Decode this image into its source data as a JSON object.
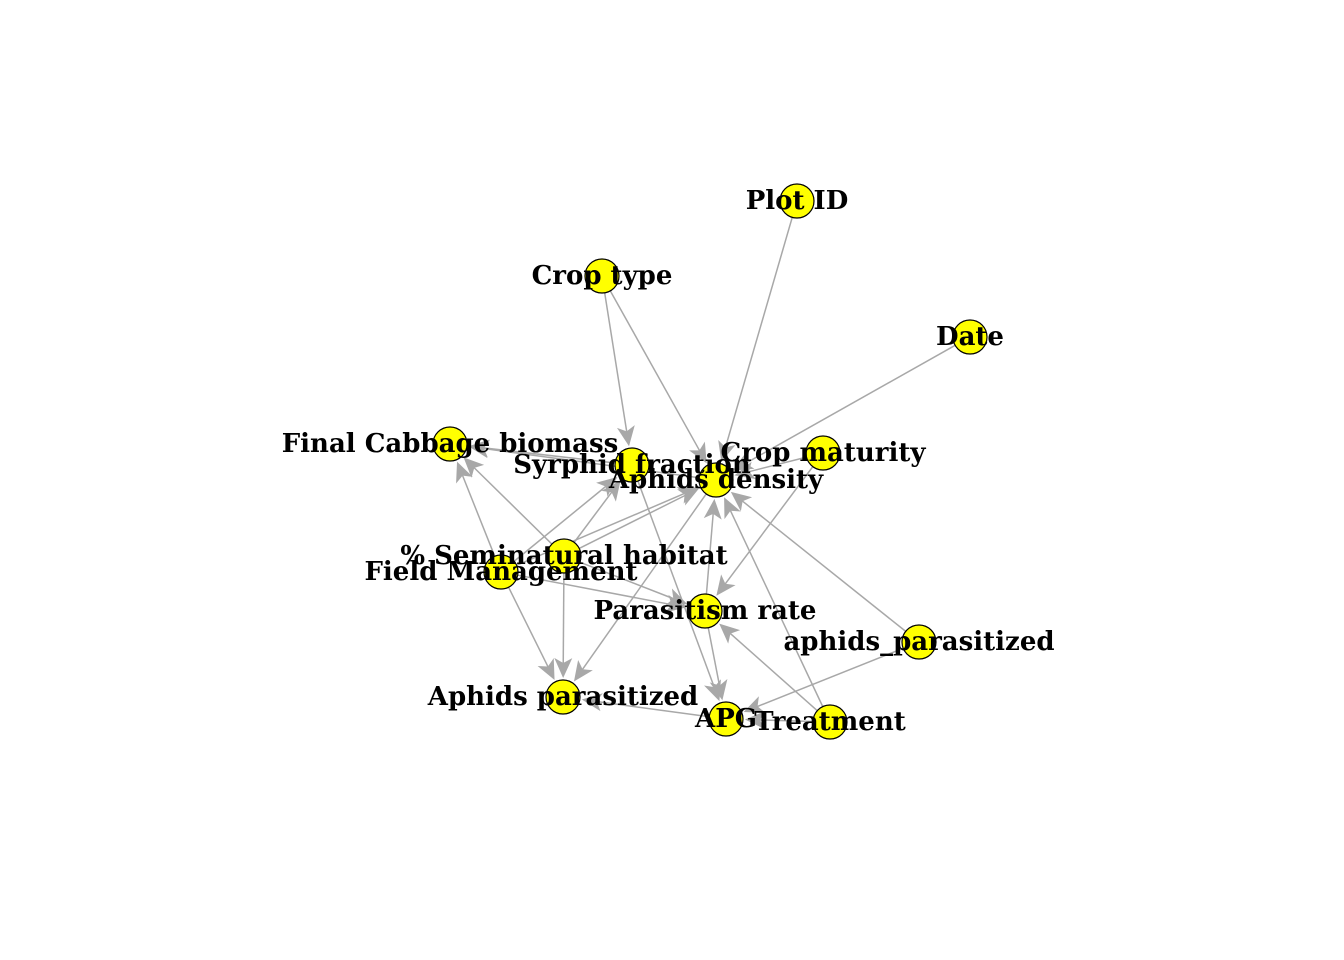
{
  "graph": {
    "node_fill": "#ffff00",
    "node_stroke": "#000000",
    "edge_color": "#a8a8a8",
    "nodes": [
      {
        "id": "plot_id",
        "label": "Plot ID"
      },
      {
        "id": "crop_type",
        "label": "Crop type"
      },
      {
        "id": "date",
        "label": "Date"
      },
      {
        "id": "final_cabbage",
        "label": "Final Cabbage biomass"
      },
      {
        "id": "syrphid",
        "label": "Syrphid fraction"
      },
      {
        "id": "crop_maturity",
        "label": "Crop maturity"
      },
      {
        "id": "aphids_density",
        "label": "Aphids density"
      },
      {
        "id": "seminatural",
        "label": "% Seminatural habitat"
      },
      {
        "id": "field_mgmt",
        "label": "Field Management"
      },
      {
        "id": "parasitism",
        "label": "Parasitism rate"
      },
      {
        "id": "aphids_parasitized_lc",
        "label": "aphids_parasitized"
      },
      {
        "id": "aphids_parasitized",
        "label": "Aphids parasitized"
      },
      {
        "id": "apg",
        "label": "APG"
      },
      {
        "id": "treatment",
        "label": "Treatment"
      }
    ],
    "edges": [
      {
        "from": "plot_id",
        "to": "aphids_density"
      },
      {
        "from": "crop_type",
        "to": "syrphid"
      },
      {
        "from": "crop_type",
        "to": "aphids_density"
      },
      {
        "from": "date",
        "to": "aphids_density"
      },
      {
        "from": "crop_maturity",
        "to": "aphids_density"
      },
      {
        "from": "crop_maturity",
        "to": "parasitism"
      },
      {
        "from": "syrphid",
        "to": "final_cabbage"
      },
      {
        "from": "syrphid",
        "to": "apg"
      },
      {
        "from": "aphids_density",
        "to": "final_cabbage"
      },
      {
        "from": "aphids_density",
        "to": "aphids_parasitized"
      },
      {
        "from": "seminatural",
        "to": "final_cabbage"
      },
      {
        "from": "seminatural",
        "to": "syrphid"
      },
      {
        "from": "seminatural",
        "to": "aphids_density"
      },
      {
        "from": "seminatural",
        "to": "aphids_parasitized"
      },
      {
        "from": "seminatural",
        "to": "parasitism"
      },
      {
        "from": "field_mgmt",
        "to": "final_cabbage"
      },
      {
        "from": "field_mgmt",
        "to": "syrphid"
      },
      {
        "from": "field_mgmt",
        "to": "aphids_density"
      },
      {
        "from": "field_mgmt",
        "to": "aphids_parasitized"
      },
      {
        "from": "field_mgmt",
        "to": "parasitism"
      },
      {
        "from": "parasitism",
        "to": "aphids_density"
      },
      {
        "from": "parasitism",
        "to": "apg"
      },
      {
        "from": "aphids_parasitized_lc",
        "to": "aphids_density"
      },
      {
        "from": "aphids_parasitized_lc",
        "to": "apg"
      },
      {
        "from": "treatment",
        "to": "aphids_density"
      },
      {
        "from": "treatment",
        "to": "parasitism"
      },
      {
        "from": "treatment",
        "to": "apg"
      },
      {
        "from": "apg",
        "to": "aphids_parasitized"
      }
    ]
  }
}
